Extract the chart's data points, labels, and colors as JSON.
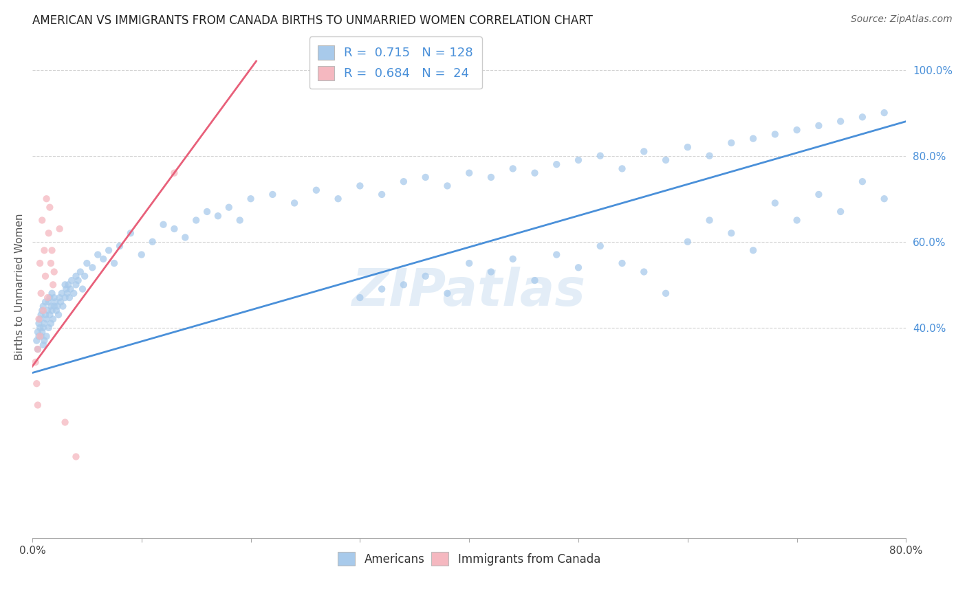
{
  "title": "AMERICAN VS IMMIGRANTS FROM CANADA BIRTHS TO UNMARRIED WOMEN CORRELATION CHART",
  "source": "Source: ZipAtlas.com",
  "ylabel": "Births to Unmarried Women",
  "watermark": "ZIPatlas",
  "blue_color": "#a8caeb",
  "blue_line_color": "#4a90d9",
  "pink_color": "#f5b8c0",
  "pink_line_color": "#e8607a",
  "background": "#ffffff",
  "grid_color": "#cccccc",
  "xlim": [
    0.0,
    0.8
  ],
  "ylim": [
    -0.09,
    1.08
  ],
  "blue_trend_x": [
    0.0,
    0.8
  ],
  "blue_trend_y": [
    0.295,
    0.88
  ],
  "pink_trend_x": [
    0.0,
    0.205
  ],
  "pink_trend_y": [
    0.31,
    1.02
  ],
  "right_yticks": [
    0.4,
    0.6,
    0.8,
    1.0
  ],
  "right_yticklabels": [
    "40.0%",
    "60.0%",
    "80.0%",
    "100.0%"
  ],
  "xtick_all": [
    0.0,
    0.1,
    0.2,
    0.3,
    0.4,
    0.5,
    0.6,
    0.7,
    0.8
  ],
  "xtick_labeled": [
    0.0,
    0.8
  ],
  "legend_r_blue": "0.715",
  "legend_n_blue": "128",
  "legend_r_pink": "0.684",
  "legend_n_pink": "24",
  "legend_color": "#4a90d9",
  "title_fontsize": 12,
  "axis_label_fontsize": 11,
  "tick_label_fontsize": 11,
  "legend_fontsize": 13,
  "source_fontsize": 10,
  "watermark_fontsize": 54,
  "watermark_color": "#c8ddf0",
  "watermark_alpha": 0.5,
  "dot_size": 55,
  "dot_alpha": 0.75,
  "grid_linewidth": 0.8,
  "trend_linewidth": 2.0,
  "americans_x": [
    0.004,
    0.005,
    0.005,
    0.006,
    0.006,
    0.007,
    0.007,
    0.008,
    0.008,
    0.009,
    0.009,
    0.01,
    0.01,
    0.01,
    0.011,
    0.011,
    0.012,
    0.012,
    0.013,
    0.013,
    0.014,
    0.015,
    0.015,
    0.016,
    0.016,
    0.017,
    0.017,
    0.018,
    0.018,
    0.019,
    0.02,
    0.02,
    0.021,
    0.022,
    0.023,
    0.024,
    0.025,
    0.026,
    0.027,
    0.028,
    0.03,
    0.03,
    0.031,
    0.032,
    0.033,
    0.034,
    0.035,
    0.036,
    0.038,
    0.04,
    0.04,
    0.042,
    0.044,
    0.046,
    0.048,
    0.05,
    0.055,
    0.06,
    0.065,
    0.07,
    0.075,
    0.08,
    0.09,
    0.1,
    0.11,
    0.12,
    0.13,
    0.14,
    0.15,
    0.16,
    0.17,
    0.18,
    0.19,
    0.2,
    0.22,
    0.24,
    0.26,
    0.28,
    0.3,
    0.32,
    0.34,
    0.36,
    0.38,
    0.4,
    0.42,
    0.44,
    0.46,
    0.48,
    0.5,
    0.52,
    0.54,
    0.56,
    0.58,
    0.6,
    0.62,
    0.64,
    0.66,
    0.68,
    0.7,
    0.72,
    0.74,
    0.76,
    0.78,
    0.56,
    0.58,
    0.6,
    0.62,
    0.64,
    0.66,
    0.68,
    0.7,
    0.72,
    0.74,
    0.76,
    0.78,
    0.3,
    0.32,
    0.34,
    0.36,
    0.38,
    0.4,
    0.42,
    0.44,
    0.46,
    0.48,
    0.5,
    0.52,
    0.54
  ],
  "americans_y": [
    0.37,
    0.39,
    0.35,
    0.38,
    0.41,
    0.4,
    0.42,
    0.38,
    0.43,
    0.39,
    0.44,
    0.36,
    0.4,
    0.45,
    0.41,
    0.37,
    0.43,
    0.46,
    0.42,
    0.38,
    0.44,
    0.4,
    0.46,
    0.43,
    0.47,
    0.41,
    0.45,
    0.44,
    0.48,
    0.42,
    0.45,
    0.47,
    0.46,
    0.44,
    0.45,
    0.43,
    0.47,
    0.46,
    0.48,
    0.45,
    0.47,
    0.5,
    0.49,
    0.48,
    0.5,
    0.47,
    0.49,
    0.51,
    0.48,
    0.5,
    0.52,
    0.51,
    0.53,
    0.49,
    0.52,
    0.55,
    0.54,
    0.57,
    0.56,
    0.58,
    0.55,
    0.59,
    0.62,
    0.57,
    0.6,
    0.64,
    0.63,
    0.61,
    0.65,
    0.67,
    0.66,
    0.68,
    0.65,
    0.7,
    0.71,
    0.69,
    0.72,
    0.7,
    0.73,
    0.71,
    0.74,
    0.75,
    0.73,
    0.76,
    0.75,
    0.77,
    0.76,
    0.78,
    0.79,
    0.8,
    0.77,
    0.81,
    0.79,
    0.82,
    0.8,
    0.83,
    0.84,
    0.85,
    0.86,
    0.87,
    0.88,
    0.89,
    0.9,
    0.53,
    0.48,
    0.6,
    0.65,
    0.62,
    0.58,
    0.69,
    0.65,
    0.71,
    0.67,
    0.74,
    0.7,
    0.47,
    0.49,
    0.5,
    0.52,
    0.48,
    0.55,
    0.53,
    0.56,
    0.51,
    0.57,
    0.54,
    0.59,
    0.55
  ],
  "immigrants_x": [
    0.003,
    0.004,
    0.005,
    0.005,
    0.006,
    0.007,
    0.007,
    0.008,
    0.009,
    0.01,
    0.011,
    0.012,
    0.013,
    0.014,
    0.015,
    0.016,
    0.017,
    0.018,
    0.019,
    0.02,
    0.025,
    0.03,
    0.04,
    0.13
  ],
  "immigrants_y": [
    0.32,
    0.27,
    0.35,
    0.22,
    0.42,
    0.38,
    0.55,
    0.48,
    0.65,
    0.44,
    0.58,
    0.52,
    0.7,
    0.47,
    0.62,
    0.68,
    0.55,
    0.58,
    0.5,
    0.53,
    0.63,
    0.18,
    0.1,
    0.76
  ]
}
